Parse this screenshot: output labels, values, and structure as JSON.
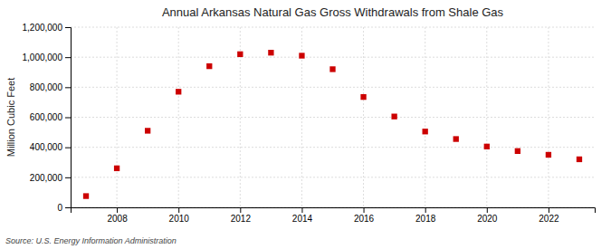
{
  "chart_data": {
    "type": "scatter",
    "title": "Annual Arkansas Natural Gas Gross Withdrawals from Shale Gas",
    "y_label": "Million Cubic Feet",
    "annotations": [
      "Source: U.S. Energy Information Administration"
    ],
    "x": [
      2007,
      2008,
      2009,
      2010,
      2011,
      2012,
      2013,
      2014,
      2015,
      2016,
      2017,
      2018,
      2019,
      2020,
      2021,
      2022,
      2023
    ],
    "values": [
      75000,
      260000,
      510000,
      770000,
      940000,
      1020000,
      1030000,
      1010000,
      920000,
      735000,
      605000,
      505000,
      455000,
      405000,
      375000,
      350000,
      320000
    ],
    "color": "#cc0000",
    "marker": "square",
    "xlim": [
      2006.5,
      2023.5
    ],
    "xticks": [
      2008,
      2010,
      2012,
      2014,
      2016,
      2018,
      2020,
      2022
    ],
    "ylim": [
      0,
      1200000
    ],
    "yticks": [
      0,
      {
        "value": 200000,
        "label": "200,000"
      },
      {
        "value": 400000,
        "label": "400,000"
      },
      {
        "value": 600000,
        "label": "600,000"
      },
      {
        "value": 800000,
        "label": "800,000"
      },
      {
        "value": 1000000,
        "label": "1,000,000"
      },
      {
        "value": 1200000,
        "label": "1,200,000"
      }
    ],
    "grid": true
  }
}
